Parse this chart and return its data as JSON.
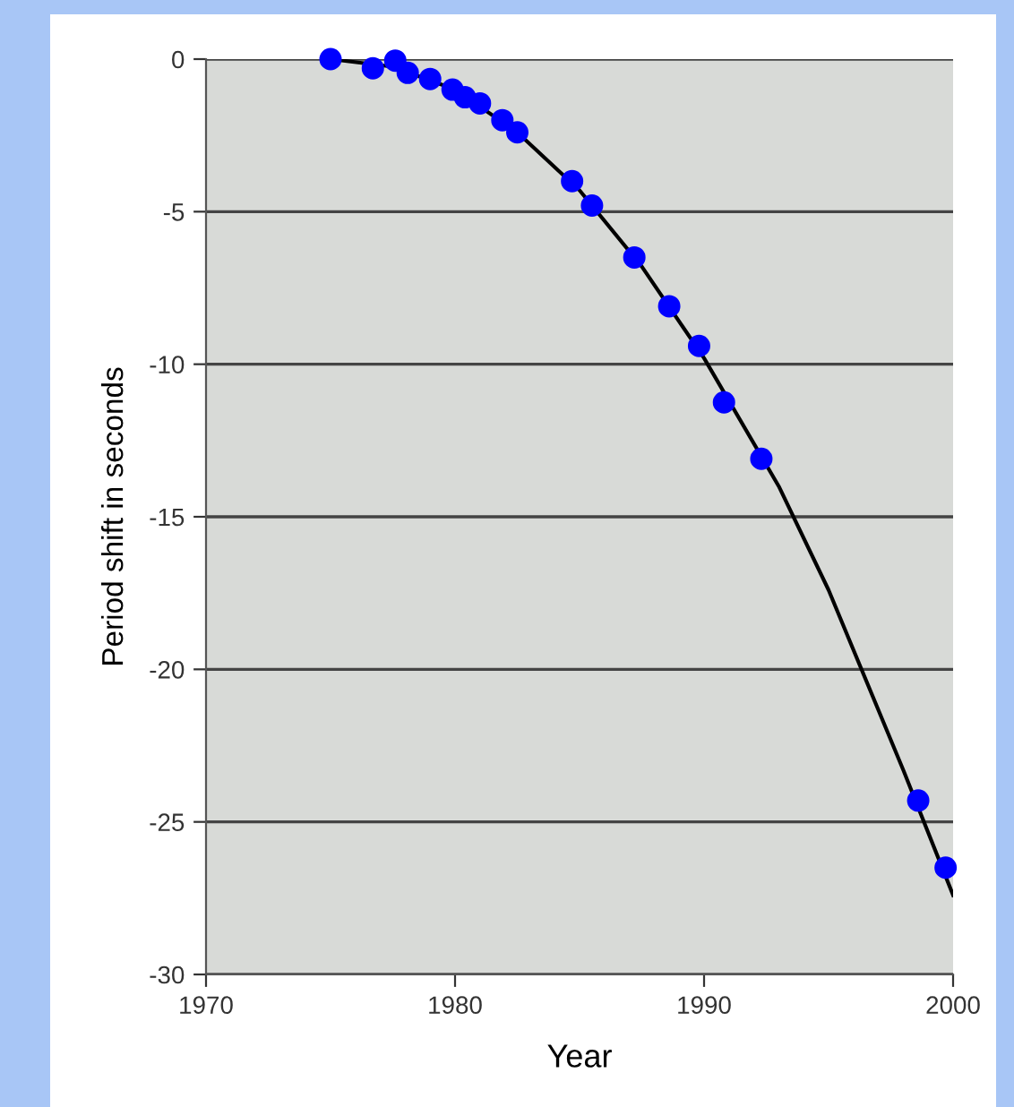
{
  "chart_data": {
    "type": "scatter",
    "xlabel": "Year",
    "ylabel": "Period shift in seconds",
    "xlim": [
      1970,
      2000
    ],
    "xticks": [
      1970,
      1980,
      1990,
      2000
    ],
    "ylim": [
      -30,
      0
    ],
    "yticks": [
      0,
      -5,
      -10,
      -15,
      -20,
      -25,
      -30
    ],
    "grid": "y",
    "series": [
      {
        "type": "line",
        "marker": "none",
        "color": "#000000",
        "x": [
          1975,
          1977.5,
          1980,
          1982.5,
          1985,
          1987.5,
          1990,
          1993,
          1995,
          1998,
          2000
        ],
        "values": [
          0,
          -0.25,
          -1.0,
          -2.4,
          -4.3,
          -6.8,
          -9.8,
          -14.0,
          -17.4,
          -23.3,
          -27.4
        ]
      },
      {
        "marker": "circle",
        "color": "#0000ff",
        "x": [
          1975.0,
          1976.7,
          1977.6,
          1978.1,
          1979.0,
          1979.9,
          1980.4,
          1981.0,
          1981.9,
          1982.5,
          1984.7,
          1985.5,
          1987.2,
          1988.6,
          1989.8,
          1990.8,
          1992.3,
          1998.6,
          1999.7
        ],
        "values": [
          0,
          -0.3,
          -0.05,
          -0.45,
          -0.65,
          -1.0,
          -1.25,
          -1.45,
          -2.0,
          -2.4,
          -4.0,
          -4.8,
          -6.5,
          -8.1,
          -9.4,
          -11.25,
          -13.1,
          -24.3,
          -26.5
        ]
      }
    ]
  }
}
